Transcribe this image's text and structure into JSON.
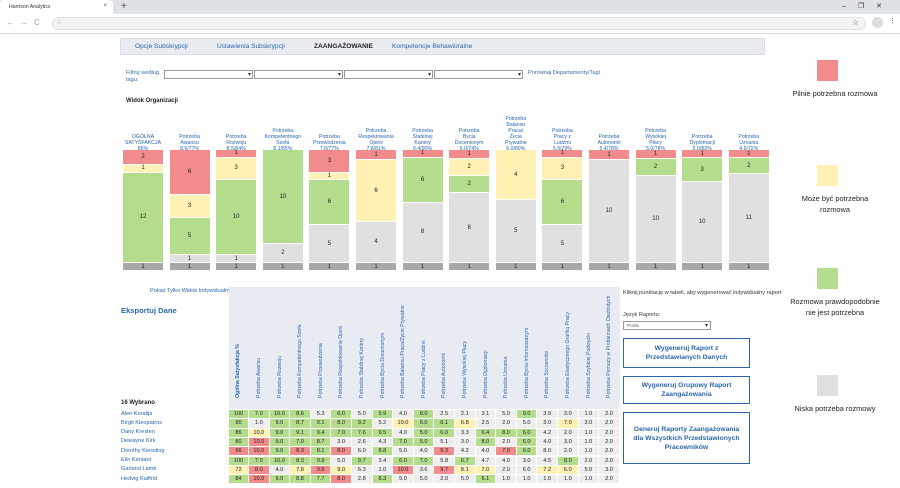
{
  "browser": {
    "tab_title": "Harrison Analytics",
    "tab_close": "×",
    "new_tab": "+",
    "window_controls": "–❐✕",
    "nav": "←→C",
    "omni_icon": "◌",
    "star": "☆",
    "menu": "⋮"
  },
  "subnav": {
    "tabs": [
      {
        "label": "Opcje Subskrypcji",
        "active": false
      },
      {
        "label": "Ustawienia Subskrypcji",
        "active": false
      },
      {
        "label": "ZAANGAŻOWANIE",
        "active": true
      },
      {
        "label": "Kompetencje Behawioralne",
        "active": false
      }
    ]
  },
  "filter": {
    "label": "Filtruj według tagu:",
    "compare_link": "Porównaj Departamenty/Tagi"
  },
  "org_view": {
    "title": "Widok Organizacji"
  },
  "colors": {
    "red": "#f28b8b",
    "yellow": "#fff0b3",
    "green": "#b3dd8d",
    "gray": "#e0e0e0",
    "dark": "#a8a8a8"
  },
  "chart_data": {
    "type": "bar",
    "stacked": true,
    "categories": [
      "OGÓLNA SATYSFAKCJA 85%",
      "Potrzeba Awansu 8.6/77%",
      "Potrzeba Rozwoju 8.5/84%",
      "Potrzeba Kompetentnego Szefa 8.1/85%",
      "Potrzeba Przewodzenia 7.8/77%",
      "Potrzeba Respektowania Opinii 7.8/81%",
      "Potrzeba Stabilnej Kariery 6.4/90%",
      "Potrzeba Bycia Docenionym 6.0/74%",
      "Potrzeba Balansu Praca/ Życie Prywatne 6.0/80%",
      "Potrzeba Pracy z Ludźmi 5.9/79%",
      "Potrzeba Autonomii 5.4/78%",
      "Potrzeba Wysokiej Płacy 5.0/78%",
      "Potrzeba Dyplomacji 5.0/82%",
      "Potrzeba Uznania 4.6/72%"
    ],
    "column_labels": [
      [
        "OGÓLNA",
        "SATYSFAKCJA",
        "85%"
      ],
      [
        "Potrzeba",
        "Awansu",
        "8.6/77%"
      ],
      [
        "Potrzeba",
        "Rozwoju",
        "8.5/84%"
      ],
      [
        "Potrzeba",
        "Kompetentnego",
        "Szefa",
        "8.1/85%"
      ],
      [
        "Potrzeba",
        "Przewodzenia",
        "7.8/77%"
      ],
      [
        "Potrzeba",
        "Respektowania",
        "Opinii",
        "7.8/81%"
      ],
      [
        "Potrzeba",
        "Stabilnej",
        "Kariery",
        "6.4/90%"
      ],
      [
        "Potrzeba",
        "Bycia",
        "Docenionym",
        "6.0/74%"
      ],
      [
        "Potrzeba",
        "Balansu",
        "Praca/",
        "Życie",
        "Prywatne",
        "6.0/80%"
      ],
      [
        "Potrzeba",
        "Pracy z",
        "Ludźmi",
        "5.9/79%"
      ],
      [
        "Potrzeba",
        "Autonomii",
        "5.4/78%"
      ],
      [
        "Potrzeba",
        "Wysokiej",
        "Płacy",
        "5.0/78%"
      ],
      [
        "Potrzeba",
        "Dyplomacji",
        "5.0/82%"
      ],
      [
        "Potrzeba",
        "Uznania",
        "4.6/72%"
      ]
    ],
    "series": [
      {
        "key": "red",
        "values": [
          2,
          6,
          1,
          0,
          3,
          1,
          1,
          1,
          0,
          1,
          1,
          1,
          1,
          1
        ]
      },
      {
        "key": "yellow",
        "values": [
          1,
          3,
          3,
          0,
          1,
          6,
          0,
          2,
          4,
          3,
          0,
          0,
          0,
          0
        ]
      },
      {
        "key": "green",
        "values": [
          12,
          5,
          10,
          10,
          6,
          0,
          6,
          2,
          0,
          6,
          0,
          2,
          3,
          2
        ]
      },
      {
        "key": "gray",
        "values": [
          0,
          1,
          1,
          2,
          5,
          4,
          8,
          8,
          5,
          5,
          10,
          10,
          10,
          11
        ]
      },
      {
        "key": "dark",
        "values": [
          1,
          1,
          1,
          1,
          1,
          1,
          1,
          1,
          1,
          1,
          1,
          1,
          1,
          1
        ]
      }
    ],
    "legend": "right"
  },
  "table": {
    "indiv_link": "Pokaż Tylko Widok Indywidualny ▶",
    "export": "Eksportuj Dane",
    "selected_count": "16 Wybrano",
    "column_headers": [
      "Ogólna Satysfakcja %",
      "Potrzeba Awansu",
      "Potrzeba Rozwoju",
      "Potrzeba Kompetentnego Szefa",
      "Potrzeba Przewodzenia",
      "Potrzeba Respektowania Opinii",
      "Potrzeba Stabilnej Kariery",
      "Potrzeba Bycia Docenionym",
      "Potrzeba Balansu Praca/Życie Prywatne",
      "Potrzeba Pracy z Ludźmi",
      "Potrzeba Autonomii",
      "Potrzeba Wysokiej Płacy",
      "Potrzeba Dyplomacji",
      "Potrzeba Uznania",
      "Potrzeba Bycia Informowanym",
      "Potrzeba Szczerości",
      "Potrzeba Elastycznego Grafiku Pracy",
      "Potrzeba Szybkiej Podwyżki",
      "Potrzeba Pomocy w Problemach Osobistych"
    ],
    "rows": [
      {
        "name": "Alen Koralija",
        "values": [
          "100",
          "7.0",
          "10.0",
          "8.6",
          "5.3",
          "6.0",
          "5.0",
          "9.9",
          "4.0",
          "8.0",
          "2.5",
          "2.1",
          "3.1",
          "5.0",
          "9.0",
          "3.9",
          "3.0",
          "1.0",
          "2.0"
        ],
        "colors": [
          "g",
          "g",
          "g",
          "g",
          "w",
          "g",
          "w",
          "g",
          "w",
          "g",
          "w",
          "w",
          "w",
          "w",
          "g",
          "w",
          "w",
          "w",
          "w"
        ]
      },
      {
        "name": "Birgit Kleopatros",
        "values": [
          "90",
          "1.0",
          "9.0",
          "8.7",
          "9.1",
          "8.0",
          "9.2",
          "5.2",
          "10.0",
          "6.0",
          "6.1",
          "6.8",
          "2.5",
          "2.0",
          "5.0",
          "3.0",
          "7.0",
          "3.0",
          "2.0"
        ],
        "colors": [
          "g",
          "w",
          "g",
          "g",
          "g",
          "g",
          "g",
          "w",
          "y",
          "g",
          "g",
          "y",
          "w",
          "w",
          "w",
          "w",
          "y",
          "w",
          "w"
        ]
      },
      {
        "name": "Dany Kresten",
        "values": [
          "86",
          "10.0",
          "9.0",
          "9.1",
          "9.4",
          "7.0",
          "7.6",
          "9.5",
          "4.0",
          "5.0",
          "6.0",
          "3.3",
          "6.4",
          "8.0",
          "6.0",
          "4.2",
          "2.0",
          "1.0",
          "2.0"
        ],
        "colors": [
          "g",
          "y",
          "g",
          "g",
          "g",
          "g",
          "g",
          "g",
          "w",
          "g",
          "g",
          "w",
          "g",
          "g",
          "g",
          "w",
          "w",
          "w",
          "w"
        ]
      },
      {
        "name": "Dewayne Kirk",
        "values": [
          "80",
          "10.0",
          "9.0",
          "7.0",
          "8.7",
          "3.0",
          "2.6",
          "4.3",
          "7.0",
          "5.0",
          "5.1",
          "3.0",
          "8.0",
          "2.0",
          "6.0",
          "4.0",
          "3.0",
          "1.0",
          "2.0"
        ],
        "colors": [
          "g",
          "r",
          "g",
          "g",
          "g",
          "w",
          "w",
          "w",
          "g",
          "g",
          "w",
          "w",
          "g",
          "w",
          "g",
          "w",
          "w",
          "w",
          "w"
        ]
      },
      {
        "name": "Dorothy Kiessling",
        "values": [
          "56",
          "10.0",
          "9.0",
          "8.3",
          "8.1",
          "8.0",
          "6.0",
          "8.8",
          "5.0",
          "4.0",
          "9.3",
          "4.2",
          "4.0",
          "7.0",
          "6.0",
          "8.0",
          "2.0",
          "1.0",
          "2.0"
        ],
        "colors": [
          "r",
          "r",
          "g",
          "r",
          "g",
          "r",
          "w",
          "g",
          "w",
          "w",
          "r",
          "w",
          "w",
          "r",
          "g",
          "w",
          "w",
          "w",
          "w"
        ]
      },
      {
        "name": "Elin Kentaró",
        "values": [
          "100",
          "7.0",
          "10.0",
          "8.3",
          "9.9",
          "5.0",
          "9.7",
          "3.4",
          "6.0",
          "7.0",
          "5.8",
          "6.7",
          "4.7",
          "4.0",
          "3.0",
          "4.5",
          "8.0",
          "2.0",
          "2.0"
        ],
        "colors": [
          "g",
          "g",
          "g",
          "g",
          "g",
          "w",
          "g",
          "w",
          "g",
          "g",
          "w",
          "g",
          "w",
          "w",
          "w",
          "w",
          "g",
          "w",
          "w"
        ]
      },
      {
        "name": "Garland Lamb",
        "values": [
          "72",
          "8.0",
          "4.0",
          "7.8",
          "9.6",
          "9.0",
          "6.3",
          "1.0",
          "10.0",
          "3.6",
          "9.7",
          "8.1",
          "7.0",
          "2.0",
          "6.0",
          "7.2",
          "6.0",
          "5.0",
          "3.0"
        ],
        "colors": [
          "y",
          "r",
          "w",
          "y",
          "r",
          "y",
          "w",
          "w",
          "r",
          "w",
          "r",
          "y",
          "y",
          "w",
          "w",
          "y",
          "y",
          "w",
          "w"
        ]
      },
      {
        "name": "Hedvig Kailfrid",
        "values": [
          "84",
          "10.0",
          "9.0",
          "8.8",
          "7.7",
          "8.0",
          "2.8",
          "8.3",
          "5.0",
          "5.0",
          "2.0",
          "5.0",
          "6.1",
          "1.0",
          "1.0",
          "1.0",
          "1.0",
          "1.0",
          "2.0"
        ],
        "colors": [
          "g",
          "r",
          "g",
          "g",
          "g",
          "r",
          "w",
          "g",
          "w",
          "w",
          "w",
          "w",
          "g",
          "w",
          "w",
          "w",
          "w",
          "w",
          "w"
        ]
      }
    ]
  },
  "report": {
    "hint": "Kliknij punktację w tabeli, aby wygenerować indywidualny raport",
    "language_label": "Język Raportu:",
    "language_value": "Polski",
    "btn_group_data": "Wygeneruj Raport z Przedstawianych Danych",
    "btn_group_engagement": "Wygeneruj Grupowy Raport Zaangażowania",
    "btn_all_employees": "Generuj Raporty Zaangażowania dla Wszystkich Przedstawionych Pracowników"
  },
  "legend": [
    {
      "color": "#f28b8b",
      "label": "Pilnie potrzebna rozmowa"
    },
    {
      "color": "#fff0b3",
      "label": "Może być potrzebna rozmowa"
    },
    {
      "color": "#b3dd8d",
      "label": "Rozmowa prawdopodobnie nie jest potrzebna"
    },
    {
      "color": "#e0e0e0",
      "label": "Niska potrzeba rozmowy"
    }
  ]
}
